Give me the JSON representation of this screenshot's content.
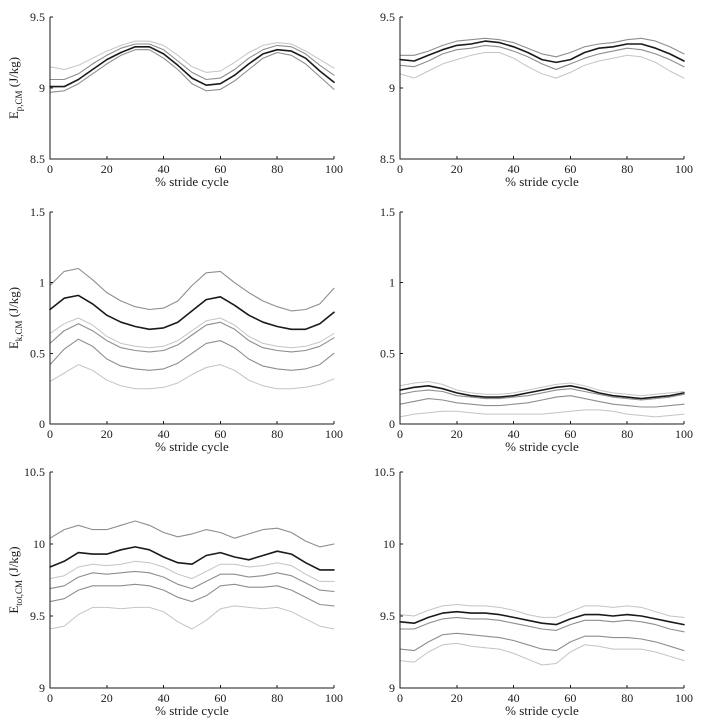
{
  "chart_data": [
    {
      "type": "line",
      "xlabel": "% stride cycle",
      "ylabel": {
        "main": "E",
        "sub": "p,CM",
        "unit": "(J/kg)"
      },
      "xlim": [
        0,
        100
      ],
      "ylim": [
        8.5,
        9.5
      ],
      "xticks": [
        0,
        20,
        40,
        60,
        80,
        100
      ],
      "yticks": [
        8.5,
        9,
        9.5
      ],
      "ytick_labels": [
        "8.5",
        "9",
        "9.5"
      ],
      "x": [
        0,
        5,
        10,
        15,
        20,
        25,
        30,
        35,
        40,
        45,
        50,
        55,
        60,
        65,
        70,
        75,
        80,
        85,
        90,
        95,
        100
      ],
      "series": [
        {
          "color": "#c4c4c4",
          "width": 1.0,
          "values": [
            9.15,
            9.13,
            9.16,
            9.21,
            9.26,
            9.3,
            9.33,
            9.33,
            9.3,
            9.23,
            9.15,
            9.11,
            9.12,
            9.18,
            9.25,
            9.3,
            9.32,
            9.31,
            9.26,
            9.2,
            9.14
          ]
        },
        {
          "color": "#8e8e8e",
          "width": 1.1,
          "values": [
            9.06,
            9.06,
            9.1,
            9.17,
            9.23,
            9.28,
            9.31,
            9.31,
            9.27,
            9.19,
            9.11,
            9.06,
            9.07,
            9.13,
            9.21,
            9.27,
            9.3,
            9.29,
            9.24,
            9.16,
            9.09
          ]
        },
        {
          "color": "#1a1a1a",
          "width": 1.6,
          "values": [
            9.01,
            9.01,
            9.06,
            9.13,
            9.2,
            9.25,
            9.29,
            9.29,
            9.24,
            9.16,
            9.07,
            9.02,
            9.03,
            9.09,
            9.17,
            9.24,
            9.27,
            9.26,
            9.21,
            9.12,
            9.04
          ]
        },
        {
          "color": "#8e8e8e",
          "width": 1.1,
          "values": [
            8.97,
            8.98,
            9.03,
            9.1,
            9.17,
            9.23,
            9.27,
            9.27,
            9.21,
            9.13,
            9.03,
            8.98,
            8.99,
            9.05,
            9.13,
            9.21,
            9.25,
            9.23,
            9.17,
            9.08,
            8.99
          ]
        }
      ]
    },
    {
      "type": "line",
      "xlabel": "% stride cycle",
      "ylabel": {
        "main": "",
        "sub": "",
        "unit": ""
      },
      "xlim": [
        0,
        100
      ],
      "ylim": [
        8.5,
        9.5
      ],
      "xticks": [
        0,
        20,
        40,
        60,
        80,
        100
      ],
      "yticks": [
        8.5,
        9,
        9.5
      ],
      "ytick_labels": [
        "8.5",
        "9",
        "9.5"
      ],
      "x": [
        0,
        5,
        10,
        15,
        20,
        25,
        30,
        35,
        40,
        45,
        50,
        55,
        60,
        65,
        70,
        75,
        80,
        85,
        90,
        95,
        100
      ],
      "series": [
        {
          "color": "#8e8e8e",
          "width": 1.1,
          "values": [
            9.23,
            9.23,
            9.26,
            9.3,
            9.33,
            9.34,
            9.35,
            9.34,
            9.32,
            9.28,
            9.24,
            9.22,
            9.25,
            9.29,
            9.31,
            9.32,
            9.34,
            9.35,
            9.33,
            9.29,
            9.24
          ]
        },
        {
          "color": "#1a1a1a",
          "width": 1.6,
          "values": [
            9.2,
            9.19,
            9.23,
            9.27,
            9.3,
            9.31,
            9.33,
            9.32,
            9.29,
            9.25,
            9.2,
            9.18,
            9.2,
            9.25,
            9.28,
            9.29,
            9.31,
            9.31,
            9.28,
            9.24,
            9.19
          ]
        },
        {
          "color": "#8e8e8e",
          "width": 1.1,
          "values": [
            9.16,
            9.15,
            9.19,
            9.24,
            9.27,
            9.28,
            9.3,
            9.29,
            9.26,
            9.22,
            9.17,
            9.13,
            9.17,
            9.21,
            9.24,
            9.26,
            9.28,
            9.27,
            9.24,
            9.2,
            9.15
          ]
        },
        {
          "color": "#c4c4c4",
          "width": 1.0,
          "values": [
            9.1,
            9.07,
            9.12,
            9.17,
            9.2,
            9.23,
            9.25,
            9.25,
            9.21,
            9.15,
            9.1,
            9.07,
            9.11,
            9.16,
            9.19,
            9.21,
            9.23,
            9.22,
            9.18,
            9.12,
            9.07
          ]
        }
      ]
    },
    {
      "type": "line",
      "xlabel": "% stride cycle",
      "ylabel": {
        "main": "E",
        "sub": "k,CM",
        "unit": "(J/kg)"
      },
      "xlim": [
        0,
        100
      ],
      "ylim": [
        0,
        1.5
      ],
      "xticks": [
        0,
        20,
        40,
        60,
        80,
        100
      ],
      "yticks": [
        0,
        0.5,
        1,
        1.5
      ],
      "ytick_labels": [
        "0",
        "0.5",
        "1",
        "1.5"
      ],
      "x": [
        0,
        5,
        10,
        15,
        20,
        25,
        30,
        35,
        40,
        45,
        50,
        55,
        60,
        65,
        70,
        75,
        80,
        85,
        90,
        95,
        100
      ],
      "series": [
        {
          "color": "#8e8e8e",
          "width": 1.1,
          "values": [
            0.98,
            1.08,
            1.1,
            1.02,
            0.93,
            0.87,
            0.83,
            0.81,
            0.82,
            0.87,
            0.98,
            1.07,
            1.08,
            1.0,
            0.93,
            0.87,
            0.83,
            0.8,
            0.81,
            0.85,
            0.96
          ]
        },
        {
          "color": "#1a1a1a",
          "width": 1.6,
          "values": [
            0.81,
            0.89,
            0.91,
            0.85,
            0.77,
            0.72,
            0.69,
            0.67,
            0.68,
            0.72,
            0.8,
            0.88,
            0.9,
            0.84,
            0.77,
            0.72,
            0.69,
            0.67,
            0.67,
            0.71,
            0.79
          ]
        },
        {
          "color": "#c4c4c4",
          "width": 1.0,
          "values": [
            0.64,
            0.71,
            0.75,
            0.7,
            0.62,
            0.57,
            0.55,
            0.54,
            0.55,
            0.59,
            0.66,
            0.73,
            0.75,
            0.7,
            0.62,
            0.57,
            0.55,
            0.54,
            0.55,
            0.58,
            0.64
          ]
        },
        {
          "color": "#8e8e8e",
          "width": 1.1,
          "values": [
            0.57,
            0.66,
            0.71,
            0.66,
            0.59,
            0.54,
            0.52,
            0.51,
            0.52,
            0.56,
            0.63,
            0.7,
            0.72,
            0.67,
            0.59,
            0.54,
            0.52,
            0.51,
            0.52,
            0.55,
            0.61
          ]
        },
        {
          "color": "#8e8e8e",
          "width": 1.1,
          "values": [
            0.42,
            0.53,
            0.6,
            0.55,
            0.46,
            0.41,
            0.39,
            0.38,
            0.39,
            0.43,
            0.5,
            0.57,
            0.59,
            0.54,
            0.46,
            0.41,
            0.39,
            0.38,
            0.39,
            0.42,
            0.5
          ]
        },
        {
          "color": "#c4c4c4",
          "width": 1.0,
          "values": [
            0.3,
            0.36,
            0.42,
            0.38,
            0.31,
            0.27,
            0.25,
            0.25,
            0.26,
            0.29,
            0.35,
            0.4,
            0.42,
            0.38,
            0.31,
            0.27,
            0.25,
            0.25,
            0.26,
            0.28,
            0.32
          ]
        }
      ]
    },
    {
      "type": "line",
      "xlabel": "% stride cycle",
      "ylabel": {
        "main": "",
        "sub": "",
        "unit": ""
      },
      "xlim": [
        0,
        100
      ],
      "ylim": [
        0,
        1.5
      ],
      "xticks": [
        0,
        20,
        40,
        60,
        80,
        100
      ],
      "yticks": [
        0,
        0.5,
        1,
        1.5
      ],
      "ytick_labels": [
        "0",
        "0.5",
        "1",
        "1.5"
      ],
      "x": [
        0,
        5,
        10,
        15,
        20,
        25,
        30,
        35,
        40,
        45,
        50,
        55,
        60,
        65,
        70,
        75,
        80,
        85,
        90,
        95,
        100
      ],
      "series": [
        {
          "color": "#c4c4c4",
          "width": 1.0,
          "values": [
            0.27,
            0.29,
            0.3,
            0.28,
            0.24,
            0.22,
            0.21,
            0.21,
            0.22,
            0.24,
            0.26,
            0.28,
            0.29,
            0.27,
            0.24,
            0.22,
            0.21,
            0.2,
            0.21,
            0.22,
            0.23
          ]
        },
        {
          "color": "#1a1a1a",
          "width": 1.6,
          "values": [
            0.24,
            0.26,
            0.27,
            0.25,
            0.22,
            0.2,
            0.19,
            0.19,
            0.2,
            0.22,
            0.24,
            0.26,
            0.27,
            0.25,
            0.22,
            0.2,
            0.19,
            0.18,
            0.19,
            0.2,
            0.22
          ]
        },
        {
          "color": "#8e8e8e",
          "width": 1.1,
          "values": [
            0.21,
            0.23,
            0.24,
            0.23,
            0.2,
            0.19,
            0.18,
            0.18,
            0.19,
            0.2,
            0.22,
            0.24,
            0.25,
            0.23,
            0.21,
            0.19,
            0.18,
            0.17,
            0.18,
            0.19,
            0.21
          ]
        },
        {
          "color": "#8e8e8e",
          "width": 1.1,
          "values": [
            0.14,
            0.16,
            0.18,
            0.17,
            0.15,
            0.14,
            0.13,
            0.13,
            0.14,
            0.15,
            0.17,
            0.19,
            0.2,
            0.18,
            0.16,
            0.14,
            0.13,
            0.12,
            0.12,
            0.13,
            0.14
          ]
        },
        {
          "color": "#c4c4c4",
          "width": 1.0,
          "values": [
            0.05,
            0.07,
            0.08,
            0.09,
            0.09,
            0.08,
            0.07,
            0.07,
            0.07,
            0.07,
            0.07,
            0.08,
            0.09,
            0.1,
            0.1,
            0.09,
            0.07,
            0.06,
            0.05,
            0.06,
            0.07
          ]
        }
      ]
    },
    {
      "type": "line",
      "xlabel": "% stride cycle",
      "ylabel": {
        "main": "E",
        "sub": "tot,CM",
        "unit": "(J/kg)"
      },
      "xlim": [
        0,
        100
      ],
      "ylim": [
        9,
        10.5
      ],
      "xticks": [
        0,
        20,
        40,
        60,
        80,
        100
      ],
      "yticks": [
        9,
        9.5,
        10,
        10.5
      ],
      "ytick_labels": [
        "9",
        "9.5",
        "10",
        "10.5"
      ],
      "x": [
        0,
        5,
        10,
        15,
        20,
        25,
        30,
        35,
        40,
        45,
        50,
        55,
        60,
        65,
        70,
        75,
        80,
        85,
        90,
        95,
        100
      ],
      "series": [
        {
          "color": "#8e8e8e",
          "width": 1.1,
          "values": [
            10.04,
            10.1,
            10.13,
            10.1,
            10.1,
            10.13,
            10.16,
            10.13,
            10.08,
            10.05,
            10.07,
            10.1,
            10.08,
            10.04,
            10.07,
            10.1,
            10.11,
            10.08,
            10.02,
            9.98,
            10.0
          ]
        },
        {
          "color": "#1a1a1a",
          "width": 1.6,
          "values": [
            9.84,
            9.88,
            9.94,
            9.93,
            9.93,
            9.96,
            9.98,
            9.96,
            9.91,
            9.87,
            9.86,
            9.92,
            9.94,
            9.91,
            9.89,
            9.92,
            9.95,
            9.93,
            9.87,
            9.82,
            9.82
          ]
        },
        {
          "color": "#c4c4c4",
          "width": 1.0,
          "values": [
            9.76,
            9.78,
            9.84,
            9.86,
            9.85,
            9.86,
            9.88,
            9.87,
            9.84,
            9.79,
            9.76,
            9.81,
            9.86,
            9.86,
            9.84,
            9.85,
            9.87,
            9.85,
            9.79,
            9.74,
            9.74
          ]
        },
        {
          "color": "#8e8e8e",
          "width": 1.1,
          "values": [
            9.69,
            9.71,
            9.77,
            9.8,
            9.79,
            9.8,
            9.81,
            9.8,
            9.77,
            9.72,
            9.69,
            9.74,
            9.79,
            9.79,
            9.77,
            9.78,
            9.8,
            9.78,
            9.73,
            9.68,
            9.67
          ]
        },
        {
          "color": "#8e8e8e",
          "width": 1.1,
          "values": [
            9.6,
            9.62,
            9.68,
            9.71,
            9.71,
            9.71,
            9.72,
            9.71,
            9.68,
            9.63,
            9.6,
            9.64,
            9.71,
            9.72,
            9.7,
            9.7,
            9.71,
            9.68,
            9.63,
            9.58,
            9.57
          ]
        },
        {
          "color": "#c4c4c4",
          "width": 1.0,
          "values": [
            9.41,
            9.43,
            9.51,
            9.56,
            9.56,
            9.55,
            9.56,
            9.56,
            9.53,
            9.46,
            9.41,
            9.47,
            9.55,
            9.57,
            9.56,
            9.55,
            9.56,
            9.53,
            9.48,
            9.43,
            9.41
          ]
        }
      ]
    },
    {
      "type": "line",
      "xlabel": "% stride cycle",
      "ylabel": {
        "main": "",
        "sub": "",
        "unit": ""
      },
      "xlim": [
        0,
        100
      ],
      "ylim": [
        9,
        10.5
      ],
      "xticks": [
        0,
        20,
        40,
        60,
        80,
        100
      ],
      "yticks": [
        9,
        9.5,
        10,
        10.5
      ],
      "ytick_labels": [
        "9",
        "9.5",
        "10",
        "10.5"
      ],
      "x": [
        0,
        5,
        10,
        15,
        20,
        25,
        30,
        35,
        40,
        45,
        50,
        55,
        60,
        65,
        70,
        75,
        80,
        85,
        90,
        95,
        100
      ],
      "series": [
        {
          "color": "#c4c4c4",
          "width": 1.0,
          "values": [
            9.51,
            9.5,
            9.54,
            9.57,
            9.58,
            9.57,
            9.57,
            9.56,
            9.54,
            9.51,
            9.49,
            9.49,
            9.53,
            9.57,
            9.57,
            9.56,
            9.57,
            9.56,
            9.53,
            9.5,
            9.49
          ]
        },
        {
          "color": "#1a1a1a",
          "width": 1.6,
          "values": [
            9.46,
            9.45,
            9.49,
            9.52,
            9.53,
            9.52,
            9.52,
            9.51,
            9.49,
            9.47,
            9.45,
            9.44,
            9.48,
            9.51,
            9.51,
            9.5,
            9.51,
            9.5,
            9.48,
            9.46,
            9.44
          ]
        },
        {
          "color": "#8e8e8e",
          "width": 1.1,
          "values": [
            9.41,
            9.41,
            9.45,
            9.48,
            9.49,
            9.48,
            9.48,
            9.47,
            9.45,
            9.43,
            9.41,
            9.4,
            9.44,
            9.47,
            9.47,
            9.46,
            9.47,
            9.46,
            9.44,
            9.41,
            9.39
          ]
        },
        {
          "color": "#8e8e8e",
          "width": 1.1,
          "values": [
            9.27,
            9.26,
            9.32,
            9.37,
            9.38,
            9.37,
            9.36,
            9.35,
            9.33,
            9.3,
            9.27,
            9.26,
            9.32,
            9.36,
            9.36,
            9.35,
            9.35,
            9.34,
            9.32,
            9.29,
            9.26
          ]
        },
        {
          "color": "#c4c4c4",
          "width": 1.0,
          "values": [
            9.19,
            9.18,
            9.25,
            9.3,
            9.31,
            9.29,
            9.28,
            9.27,
            9.24,
            9.2,
            9.16,
            9.17,
            9.25,
            9.3,
            9.29,
            9.27,
            9.27,
            9.27,
            9.25,
            9.22,
            9.19
          ]
        }
      ]
    }
  ]
}
